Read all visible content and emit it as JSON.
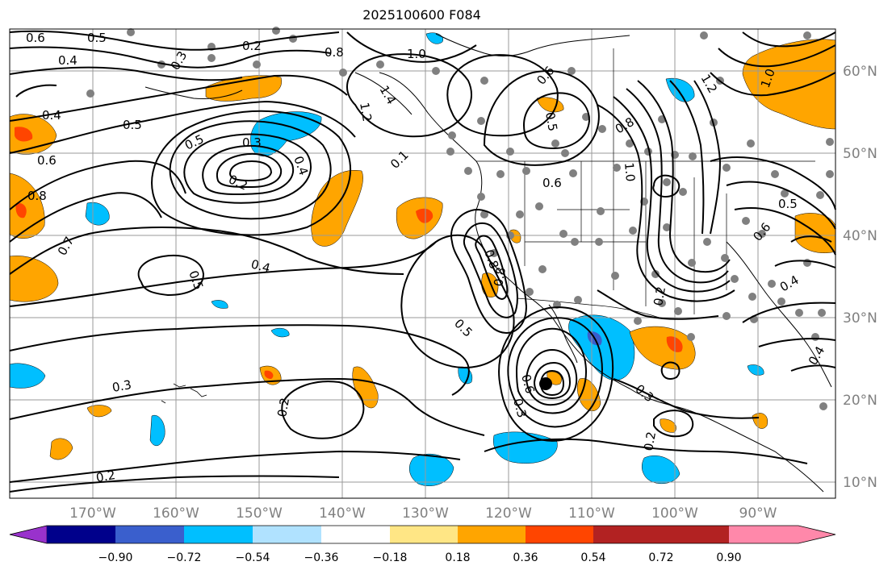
{
  "title": "2025100600 F084",
  "lat_labels": [
    "60°N",
    "50°N",
    "40°N",
    "30°N",
    "20°N",
    "10°N"
  ],
  "lon_labels": [
    "170°W",
    "160°W",
    "150°W",
    "140°W",
    "130°W",
    "120°W",
    "110°W",
    "100°W",
    "90°W"
  ],
  "colorbar": {
    "colors": [
      "#9932CC",
      "#00008B",
      "#3A5FCD",
      "#00BFFF",
      "#B0E2FF",
      "#FFFFFF",
      "#FFE685",
      "#FFA500",
      "#FF4500",
      "#B22222",
      "#FF88AA"
    ],
    "tick_labels": [
      "−0.90",
      "−0.72",
      "−0.54",
      "−0.36",
      "−0.18",
      "0.18",
      "0.36",
      "0.54",
      "0.72",
      "0.90"
    ]
  },
  "contour_labels": [
    {
      "text": "0.6"
    },
    {
      "text": "0.5"
    },
    {
      "text": "0.4"
    },
    {
      "text": "0.3"
    },
    {
      "text": "0.2"
    },
    {
      "text": "0.8"
    },
    {
      "text": "1.0"
    },
    {
      "text": "1.4"
    },
    {
      "text": "1.2"
    },
    {
      "text": "0.4"
    },
    {
      "text": "0.5"
    },
    {
      "text": "0.6"
    },
    {
      "text": "0.8"
    },
    {
      "text": "0.5"
    },
    {
      "text": "0.3"
    },
    {
      "text": "0.2"
    },
    {
      "text": "0.4"
    },
    {
      "text": "0.7"
    },
    {
      "text": "0.5"
    },
    {
      "text": "0.4"
    },
    {
      "text": "0.3"
    },
    {
      "text": "0.2"
    },
    {
      "text": "0.2"
    },
    {
      "text": "0.1"
    },
    {
      "text": "0.6"
    },
    {
      "text": "0.6"
    },
    {
      "text": "0.5"
    },
    {
      "text": "0.8"
    },
    {
      "text": "1.0"
    },
    {
      "text": "1.2"
    },
    {
      "text": "1.0"
    },
    {
      "text": "0.5"
    },
    {
      "text": "0.6"
    },
    {
      "text": "0.4"
    },
    {
      "text": "0.8"
    },
    {
      "text": "0.8"
    },
    {
      "text": "0.5"
    },
    {
      "text": "0.6"
    },
    {
      "text": "0.3"
    },
    {
      "text": "0.3"
    },
    {
      "text": "0.2"
    },
    {
      "text": "0.4"
    },
    {
      "text": "0.2"
    }
  ]
}
